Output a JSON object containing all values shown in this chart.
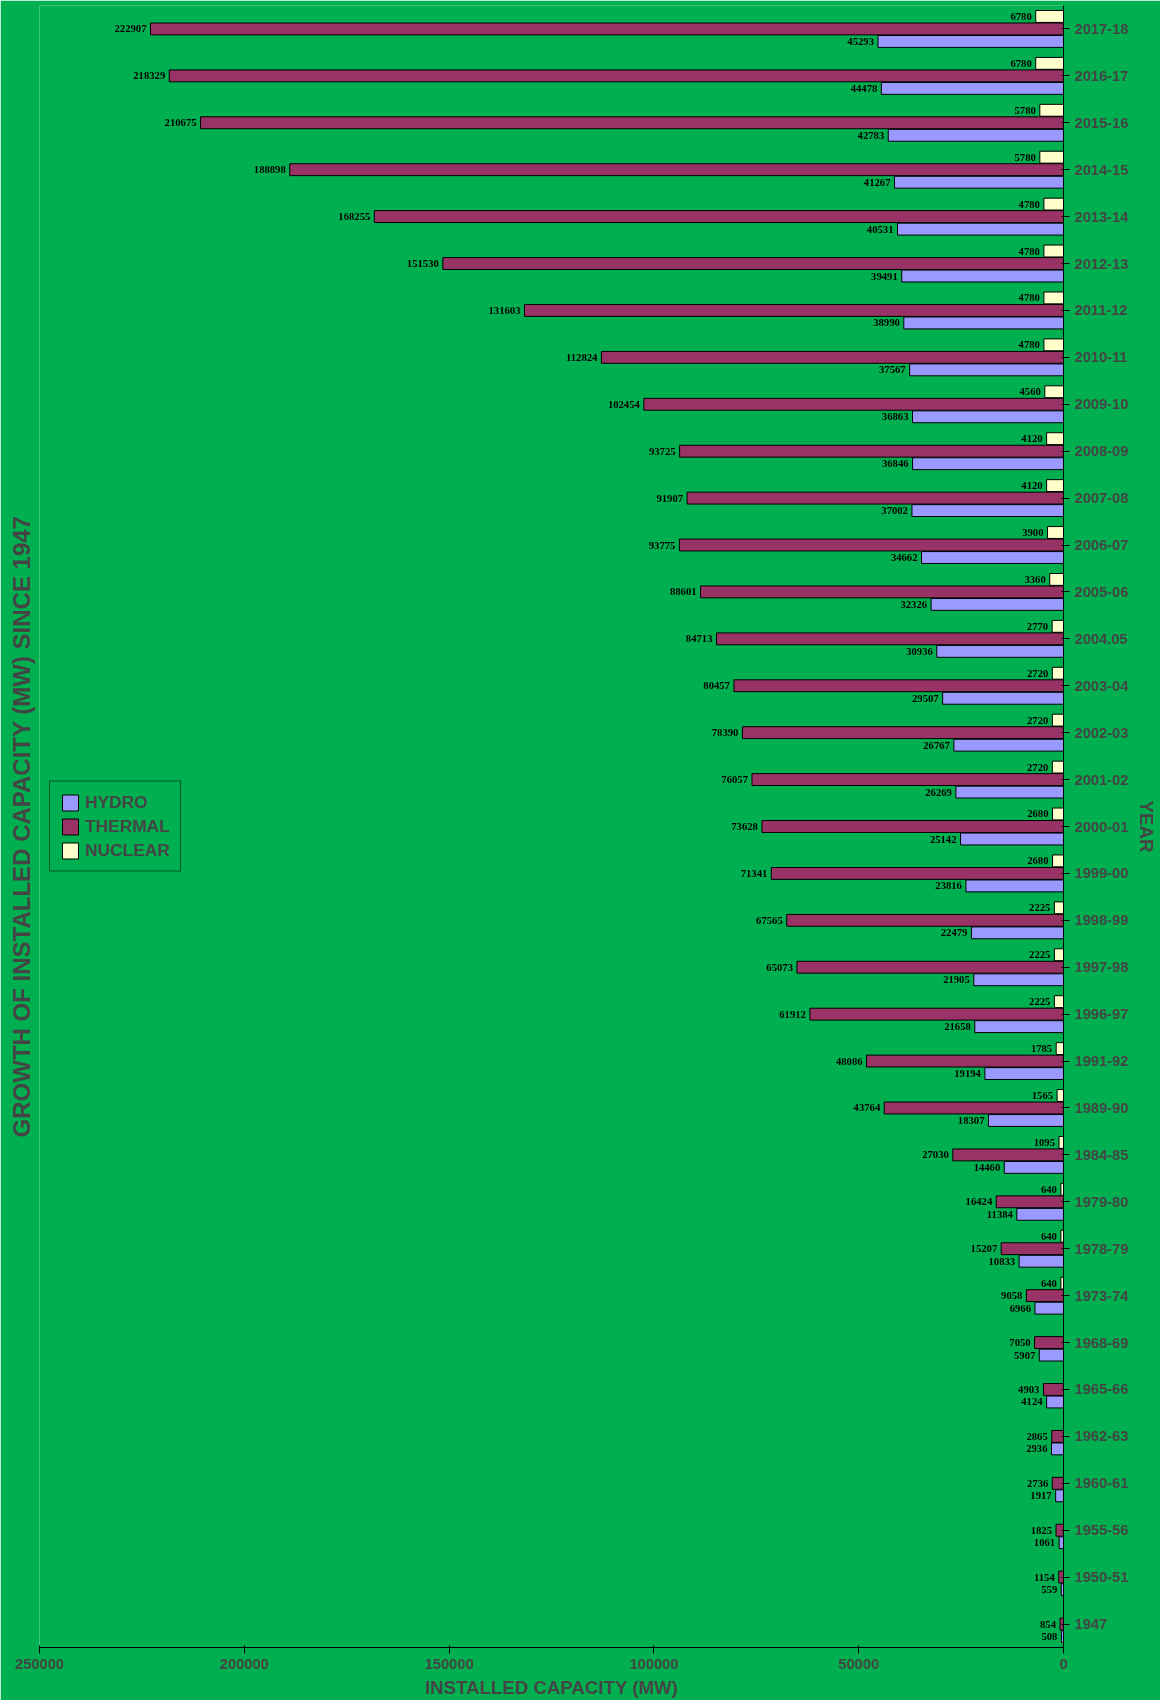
{
  "chart_data": {
    "type": "bar",
    "orientation": "horizontal",
    "title": "GROWTH OF INSTALLED CAPACITY (MW) SINCE 1947",
    "xlabel": "INSTALLED CAPACITY (MW)",
    "ylabel": "YEAR",
    "categories": [
      "2017-18",
      "2016-17",
      "2015-16",
      "2014-15",
      "2013-14",
      "2012-13",
      "2011-12",
      "2010-11",
      "2009-10",
      "2008-09",
      "2007-08",
      "2006-07",
      "2005-06",
      "2004.05",
      "2003-04",
      "2002-03",
      "2001-02",
      "2000-01",
      "1999-00",
      "1998-99",
      "1997-98",
      "1996-97",
      "1991-92",
      "1989-90",
      "1984-85",
      "1979-80",
      "1978-79",
      "1973-74",
      "1968-69",
      "1965-66",
      "1962-63",
      "1960-61",
      "1955-56",
      "1950-51",
      "1947"
    ],
    "series": [
      {
        "name": "NUCLEAR",
        "color": "#ffffcc",
        "values": [
          6780,
          6780,
          5780,
          5780,
          4780,
          4780,
          4780,
          4780,
          4560,
          4120,
          4120,
          3900,
          3360,
          2770,
          2720,
          2720,
          2720,
          2680,
          2680,
          2225,
          2225,
          2225,
          1785,
          1565,
          1095,
          640,
          640,
          640,
          null,
          null,
          null,
          null,
          null,
          null,
          null
        ]
      },
      {
        "name": "THERMAL",
        "color": "#993366",
        "values": [
          222907,
          218329,
          210675,
          188898,
          168255,
          151530,
          131603,
          112824,
          102454,
          93725,
          91907,
          93775,
          88601,
          84713,
          80457,
          78390,
          76057,
          73628,
          71341,
          67565,
          65073,
          61912,
          48086,
          43764,
          27030,
          16424,
          15207,
          9058,
          7050,
          4903,
          2865,
          2736,
          1825,
          1154,
          854
        ]
      },
      {
        "name": "HYDRO",
        "color": "#9999ff",
        "values": [
          45293,
          44478,
          42783,
          41267,
          40531,
          39491,
          38990,
          37567,
          36863,
          36846,
          37002,
          34662,
          32326,
          30936,
          29507,
          26767,
          26269,
          25142,
          23816,
          22479,
          21905,
          21658,
          19194,
          18307,
          14460,
          11384,
          10833,
          6966,
          5907,
          4124,
          2936,
          1917,
          1061,
          559,
          508
        ]
      }
    ],
    "xlim": [
      250000,
      0
    ],
    "xticks": [
      0,
      50000,
      100000,
      150000,
      200000,
      250000
    ],
    "data_labels": true,
    "legend": "left",
    "grid": false
  }
}
